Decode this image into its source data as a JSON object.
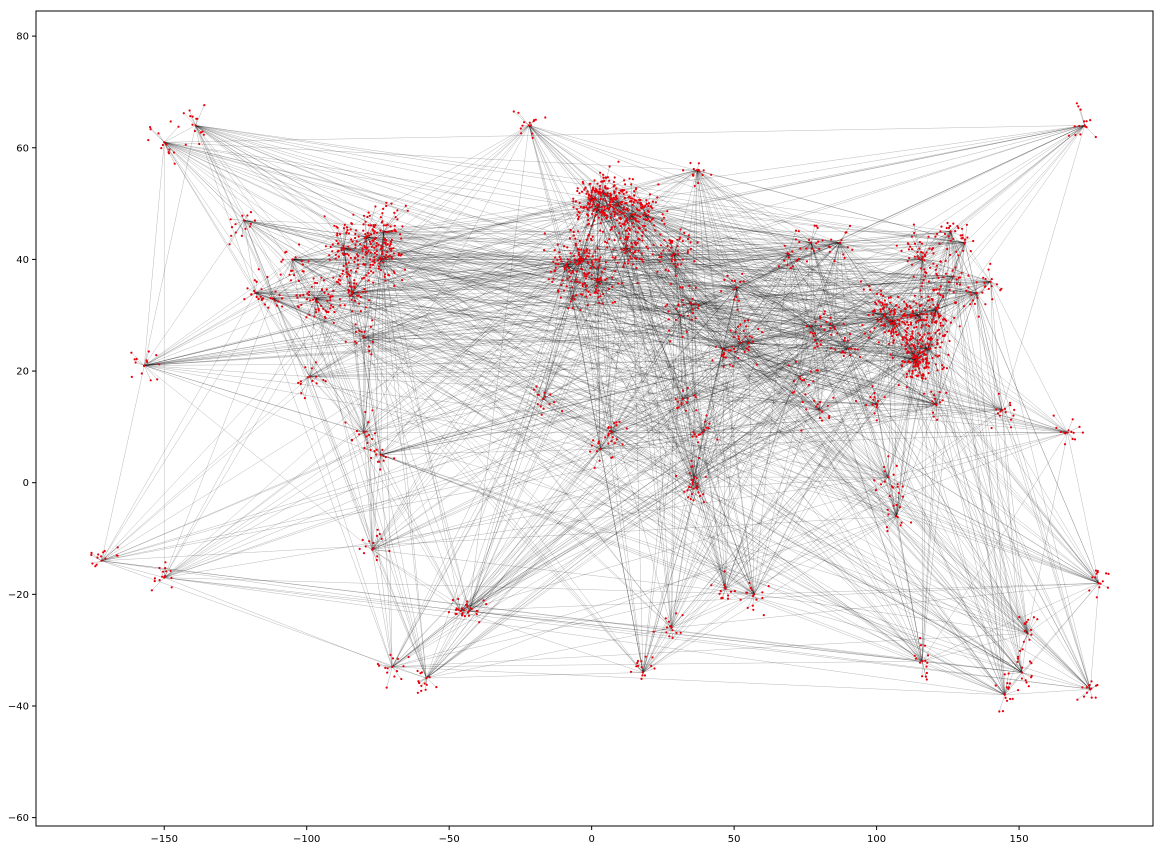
{
  "chart_data": {
    "type": "scatter",
    "title": "",
    "xlabel": "",
    "ylabel": "",
    "xlim": [
      -195,
      197
    ],
    "ylim": [
      -61.5,
      84.5
    ],
    "grid": false,
    "legend": null,
    "colors": {
      "nodes": "#e8000b",
      "edges": "#000000",
      "axes": "#000000"
    },
    "xticks": [
      {
        "value": -150,
        "label": "−150"
      },
      {
        "value": -100,
        "label": "−100"
      },
      {
        "value": -50,
        "label": "−50"
      },
      {
        "value": 0,
        "label": "0"
      },
      {
        "value": 50,
        "label": "50"
      },
      {
        "value": 100,
        "label": "100"
      },
      {
        "value": 150,
        "label": "150"
      }
    ],
    "yticks": [
      {
        "value": -60,
        "label": "−60"
      },
      {
        "value": -40,
        "label": "−40"
      },
      {
        "value": -20,
        "label": "−20"
      },
      {
        "value": 0,
        "label": "0"
      },
      {
        "value": 20,
        "label": "20"
      },
      {
        "value": 40,
        "label": "40"
      },
      {
        "value": 60,
        "label": "60"
      },
      {
        "value": 80,
        "label": "80"
      }
    ],
    "hubs": [
      [
        -84,
        34
      ],
      [
        -87,
        42
      ],
      [
        -74,
        40
      ],
      [
        -80,
        26
      ],
      [
        -118,
        34
      ],
      [
        -122,
        47
      ],
      [
        -97,
        33
      ],
      [
        -105,
        40
      ],
      [
        -112,
        33
      ],
      [
        -79,
        44
      ],
      [
        -73,
        45
      ],
      [
        -99,
        19
      ],
      [
        -157,
        21
      ],
      [
        -150,
        61
      ],
      [
        -80,
        9
      ],
      [
        -74,
        5
      ],
      [
        -77,
        -12
      ],
      [
        -46,
        -23
      ],
      [
        -43,
        -23
      ],
      [
        -58,
        -35
      ],
      [
        -70,
        -33
      ],
      [
        -22,
        64
      ],
      [
        0,
        51
      ],
      [
        2,
        49
      ],
      [
        9,
        50
      ],
      [
        4,
        52
      ],
      [
        12,
        42
      ],
      [
        -4,
        40
      ],
      [
        -9,
        39
      ],
      [
        14,
        48
      ],
      [
        19,
        48
      ],
      [
        29,
        41
      ],
      [
        37,
        56
      ],
      [
        31,
        30
      ],
      [
        36,
        1
      ],
      [
        28,
        -26
      ],
      [
        18,
        -34
      ],
      [
        55,
        25
      ],
      [
        52,
        25
      ],
      [
        46,
        24
      ],
      [
        73,
        19
      ],
      [
        77,
        28
      ],
      [
        80,
        13
      ],
      [
        100,
        14
      ],
      [
        104,
        1
      ],
      [
        114,
        22
      ],
      [
        116,
        40
      ],
      [
        121,
        31
      ],
      [
        113,
        23
      ],
      [
        127,
        37
      ],
      [
        140,
        36
      ],
      [
        135,
        34
      ],
      [
        121,
        14
      ],
      [
        107,
        -6
      ],
      [
        116,
        -32
      ],
      [
        151,
        -34
      ],
      [
        145,
        -38
      ],
      [
        153,
        -27
      ],
      [
        175,
        -37
      ],
      [
        178,
        -18
      ],
      [
        -172,
        -14
      ],
      [
        -150,
        -17
      ],
      [
        144,
        13
      ],
      [
        167,
        9
      ],
      [
        -17,
        15
      ],
      [
        7,
        9
      ],
      [
        3,
        6
      ],
      [
        32,
        15
      ],
      [
        39,
        9
      ],
      [
        37,
        -1
      ],
      [
        47,
        -19
      ],
      [
        57,
        -20
      ],
      [
        2,
        36
      ],
      [
        -7,
        33
      ],
      [
        35,
        32
      ],
      [
        51,
        35
      ],
      [
        69,
        41
      ],
      [
        77,
        43
      ],
      [
        90,
        24
      ],
      [
        85,
        28
      ],
      [
        103,
        30
      ],
      [
        106,
        29
      ],
      [
        87,
        43
      ],
      [
        115,
        30
      ],
      [
        118,
        24
      ],
      [
        126,
        45
      ],
      [
        131,
        43
      ],
      [
        173,
        64
      ],
      [
        -139,
        64
      ]
    ]
  }
}
